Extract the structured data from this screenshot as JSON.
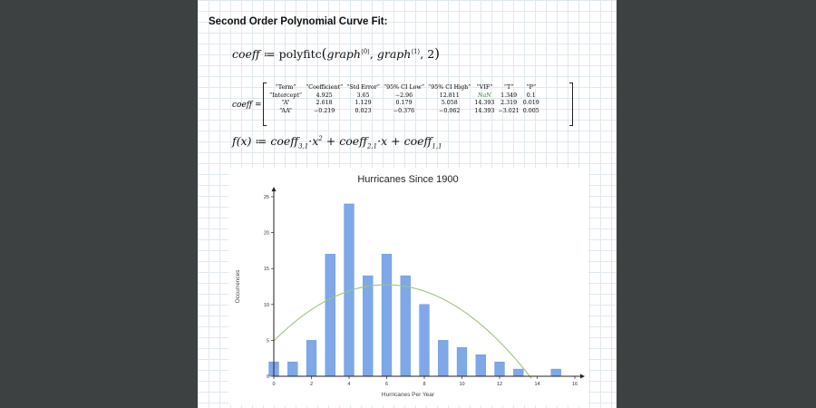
{
  "worksheet": {
    "heading": "Second Order Polynomial Curve Fit:",
    "polyfit_expr": {
      "lhs": "coeff",
      "assign": "≔",
      "fn": "polyfitc",
      "arg1": "graph",
      "arg1_sup": "⟨0⟩",
      "arg2": "graph",
      "arg2_sup": "⟨1⟩",
      "arg3": "2"
    },
    "coeff_label": "coeff =",
    "coeff_table": {
      "rows": [
        [
          "“Term”",
          "“Coefficient”",
          "“Std Error”",
          "“95% CI Low”",
          "“95% CI High”",
          "“VIF”",
          "“T”",
          "“P”"
        ],
        [
          "“Intercept”",
          "4.925",
          "3.65",
          "−2.96",
          "12.811",
          "NaN",
          "1.349",
          "0.1"
        ],
        [
          "“A”",
          "2.618",
          "1.129",
          "0.179",
          "5.058",
          "14.393",
          "2.319",
          "0.019"
        ],
        [
          "“AA”",
          "−0.219",
          "0.023",
          "−0.376",
          "−0.062",
          "14.393",
          "−3.021",
          "0.005"
        ]
      ]
    },
    "function_def": {
      "lhs": "f(x)",
      "assign": "≔",
      "t1": "coeff",
      "t1_sub": "3,1",
      "t1_tail": "·x",
      "t1_pow": "2",
      "plus1": "+",
      "t2": "coeff",
      "t2_sub": "2,1",
      "t2_tail": "·x",
      "plus2": "+",
      "t3": "coeff",
      "t3_sub": "1,1"
    }
  },
  "chart_data": {
    "type": "bar",
    "title": "Hurricanes Since 1900",
    "xlabel": "Hurricanes Per Year",
    "ylabel": "Occurrences",
    "xlim": [
      0,
      16
    ],
    "ylim": [
      0,
      25
    ],
    "xticks": [
      0,
      2,
      4,
      6,
      8,
      10,
      12,
      14,
      16
    ],
    "yticks": [
      0,
      5,
      10,
      15,
      20,
      25
    ],
    "grid": false,
    "colors": {
      "bars": "#7fa8e8",
      "bar_edge": "#6a95d8",
      "fit_curve": "#9cc47d",
      "axis": "#222222"
    },
    "bars": {
      "x": [
        0,
        1,
        2,
        3,
        4,
        5,
        6,
        7,
        8,
        9,
        10,
        11,
        12,
        13,
        15
      ],
      "values": [
        2,
        2,
        5,
        17,
        24,
        14,
        17,
        14,
        10,
        5,
        4,
        3,
        2,
        1,
        1
      ]
    },
    "fit_curve": {
      "coefficients": [
        4.925,
        2.618,
        -0.219
      ],
      "x_range": [
        0,
        13.7
      ]
    }
  }
}
